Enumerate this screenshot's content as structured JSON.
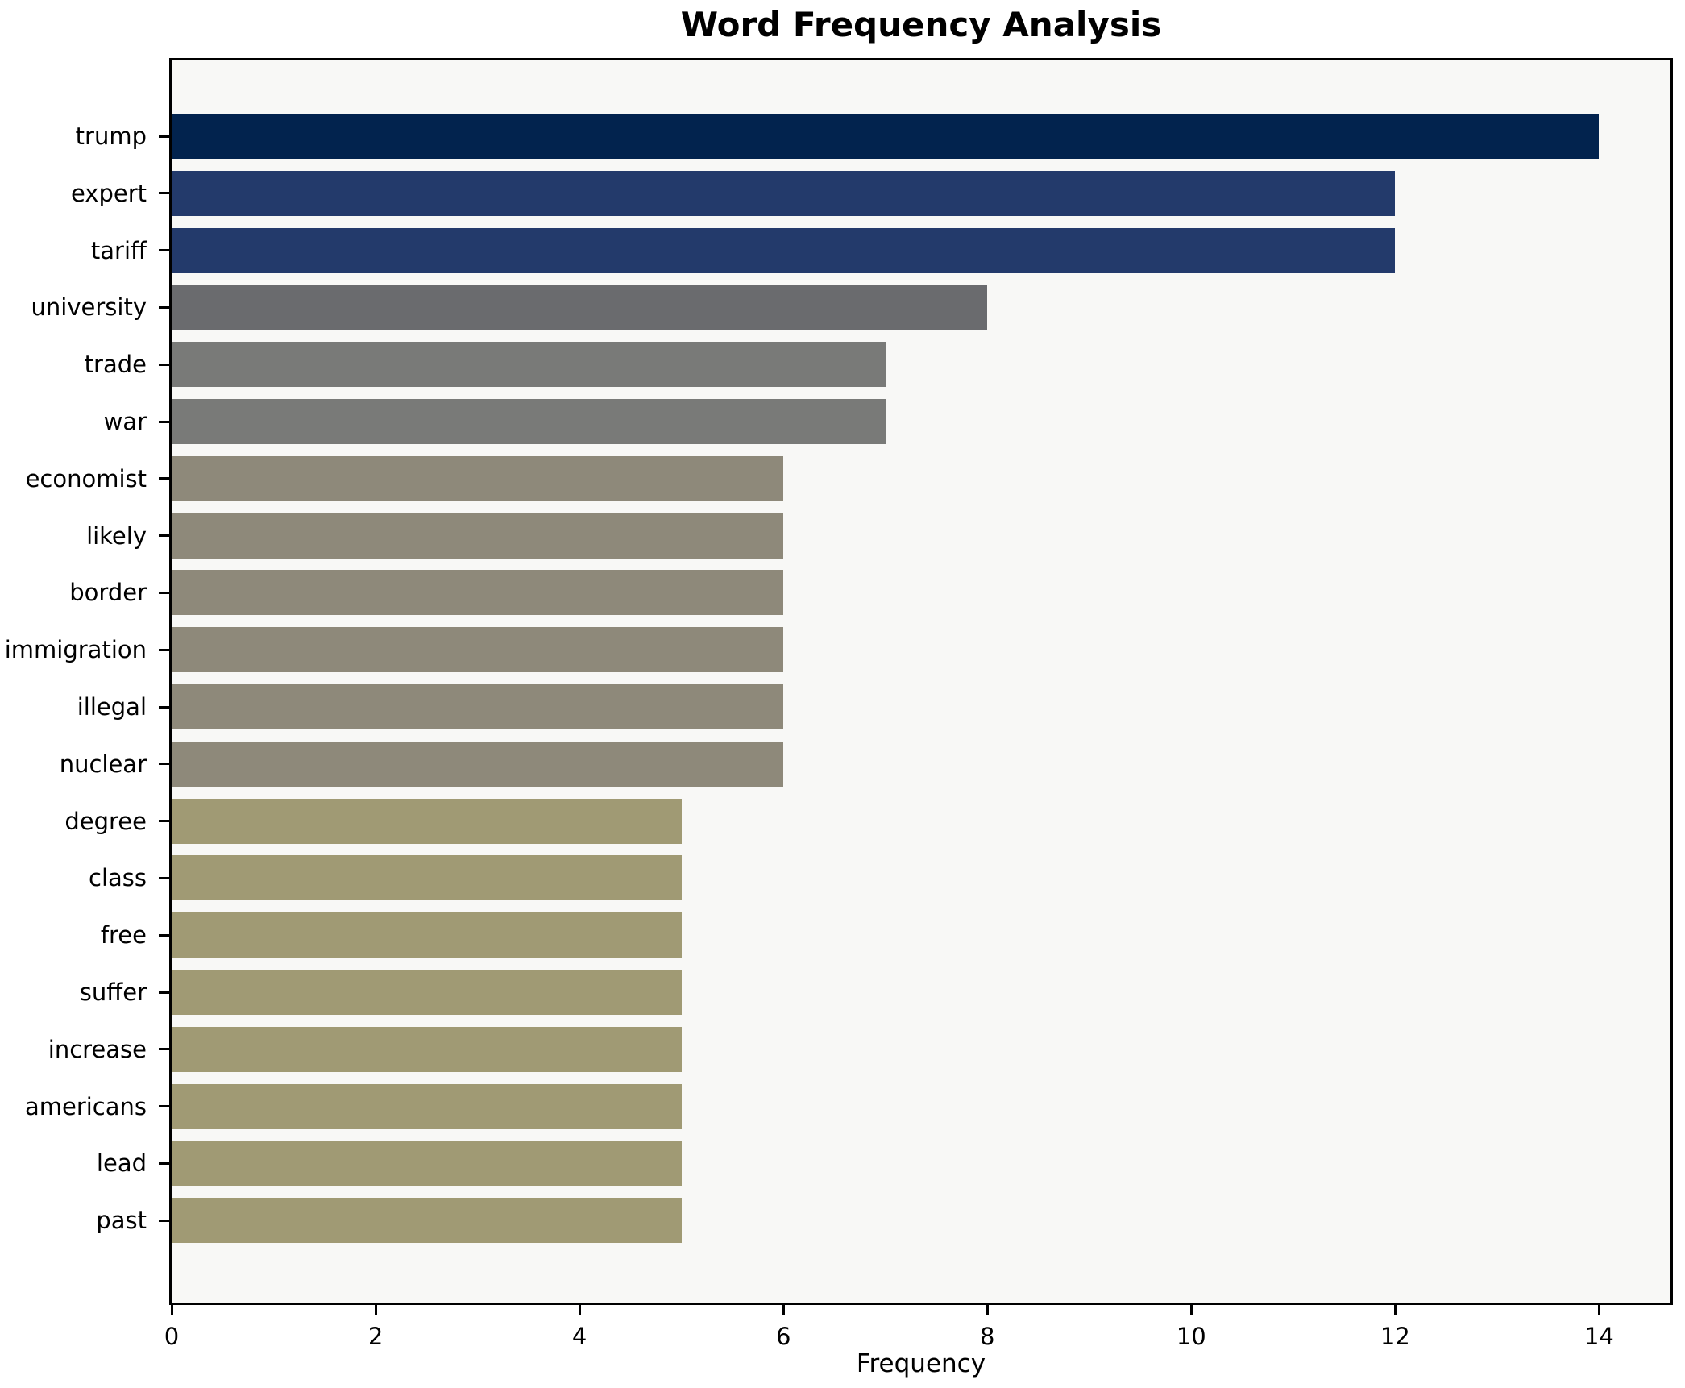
{
  "chart_data": {
    "type": "bar",
    "orientation": "horizontal",
    "title": "Word Frequency Analysis",
    "xlabel": "Frequency",
    "ylabel": "",
    "categories": [
      "trump",
      "expert",
      "tariff",
      "university",
      "trade",
      "war",
      "economist",
      "likely",
      "border",
      "immigration",
      "illegal",
      "nuclear",
      "degree",
      "class",
      "free",
      "suffer",
      "increase",
      "americans",
      "lead",
      "past"
    ],
    "values": [
      14,
      12,
      12,
      8,
      7,
      7,
      6,
      6,
      6,
      6,
      6,
      6,
      5,
      5,
      5,
      5,
      5,
      5,
      5,
      5
    ],
    "bar_colors": [
      "#02234e",
      "#233a6b",
      "#233a6b",
      "#6a6b6e",
      "#797a78",
      "#797a78",
      "#8e897a",
      "#8e897a",
      "#8e897a",
      "#8e897a",
      "#8e897a",
      "#8e897a",
      "#a09a74",
      "#a09a74",
      "#a09a74",
      "#a09a74",
      "#a09a74",
      "#a09a74",
      "#a09a74",
      "#a09a74"
    ],
    "xlim": [
      0,
      14.7
    ],
    "xticks": [
      0,
      2,
      4,
      6,
      8,
      10,
      12,
      14
    ],
    "grid": false,
    "legend": "none",
    "plot_bgcolor": "#f8f8f6",
    "figure_bgcolor": "#ffffff",
    "axis_color": "#000000",
    "text_color": "#000000"
  }
}
